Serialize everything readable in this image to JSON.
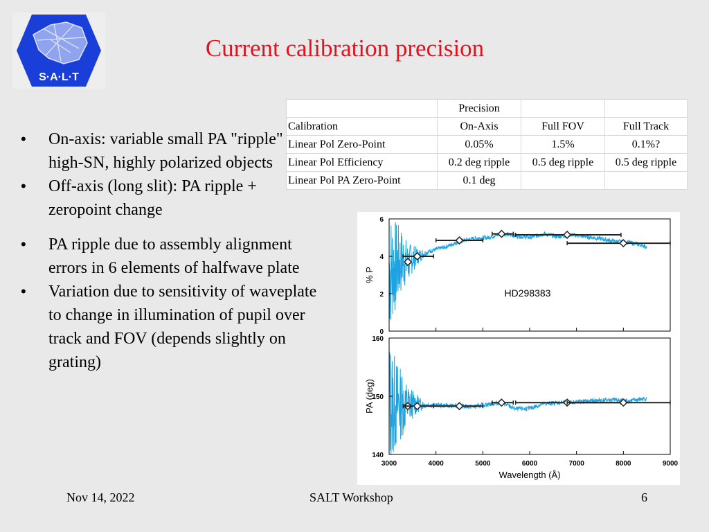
{
  "slide": {
    "title": "Current calibration precision",
    "bullets": [
      "On-axis: variable small PA \"ripple\" for high-SN, highly polarized objects",
      "Off-axis (long slit): PA ripple + zeropoint change",
      "PA ripple due to assembly alignment errors in 6 elements of halfwave plate",
      "Variation due to sensitivity of waveplate to change in illumination of pupil over track and FOV (depends slightly on grating)"
    ],
    "logo": {
      "text": "S·A·L·T",
      "icon": "salt-logo",
      "color": "#1a3fd8"
    }
  },
  "table": {
    "rows": [
      [
        "",
        "Precision",
        "",
        ""
      ],
      [
        "Calibration",
        "On-Axis",
        "Full FOV",
        "Full Track"
      ],
      [
        "Linear Pol Zero-Point",
        "0.05%",
        "1.5%",
        "0.1%?"
      ],
      [
        "Linear Pol Efficiency",
        "0.2 deg ripple",
        "0.5 deg ripple",
        "0.5 deg ripple"
      ],
      [
        "Linear Pol PA Zero-Point",
        "0.1 deg",
        "",
        ""
      ]
    ]
  },
  "footer": {
    "date": "Nov 14, 2022",
    "event": "SALT Workshop",
    "page": "6"
  },
  "chart_data": [
    {
      "type": "line",
      "label": "HD298383",
      "ylabel": "% P",
      "xlim": [
        3000,
        9000
      ],
      "ylim": [
        0,
        6
      ],
      "yticks": [
        0,
        2,
        4,
        6
      ],
      "series_color": "#1fa3e0",
      "series": [
        {
          "x": [
            3000,
            3100,
            3200,
            3300,
            3400,
            3500,
            3700,
            3900,
            4200,
            4500,
            4800,
            5100,
            5400,
            5700,
            6000,
            6300,
            6600,
            6900,
            7200,
            7500,
            7800,
            8100,
            8400,
            8500
          ],
          "values": [
            3.2,
            3.4,
            3.6,
            3.8,
            3.6,
            3.9,
            4.1,
            4.3,
            4.5,
            4.8,
            4.95,
            5.0,
            5.2,
            5.1,
            5.0,
            5.2,
            5.05,
            5.15,
            5.05,
            4.95,
            4.8,
            4.75,
            4.6,
            4.5
          ]
        }
      ],
      "binned": [
        {
          "x": 3400,
          "y": 3.7,
          "xerr": [
            3350,
            3450
          ]
        },
        {
          "x": 3600,
          "y": 4.0,
          "xerr": [
            3300,
            3950
          ]
        },
        {
          "x": 4500,
          "y": 4.85,
          "xerr": [
            4000,
            5000
          ]
        },
        {
          "x": 5400,
          "y": 5.2,
          "xerr": [
            5200,
            5650
          ]
        },
        {
          "x": 6800,
          "y": 5.15,
          "xerr": [
            5700,
            7950
          ]
        },
        {
          "x": 8000,
          "y": 4.7,
          "xerr": [
            6800,
            9000
          ]
        }
      ]
    },
    {
      "type": "line",
      "ylabel": "PA (deg)",
      "xlabel": "Wavelength (Å)",
      "xlim": [
        3000,
        9000
      ],
      "ylim": [
        140,
        160
      ],
      "yticks": [
        140,
        150,
        160
      ],
      "xticks": [
        3000,
        4000,
        5000,
        6000,
        7000,
        8000,
        9000
      ],
      "series_color": "#1fa3e0",
      "series": [
        {
          "x": [
            3000,
            3100,
            3200,
            3300,
            3400,
            3500,
            3700,
            3900,
            4200,
            4500,
            4800,
            5100,
            5400,
            5700,
            6000,
            6300,
            6600,
            6900,
            7200,
            7500,
            7800,
            8100,
            8400,
            8500
          ],
          "values": [
            149,
            148.5,
            148.8,
            148.6,
            148.4,
            148.7,
            148.6,
            148.5,
            148.4,
            148.3,
            148.2,
            148.6,
            148.9,
            147.8,
            147.9,
            148.7,
            148.9,
            149.0,
            149.1,
            149.3,
            149.4,
            149.2,
            149.5,
            149.6
          ]
        }
      ],
      "binned": [
        {
          "x": 3400,
          "y": 148.3,
          "xerr": [
            3350,
            3450
          ]
        },
        {
          "x": 3600,
          "y": 148.3,
          "xerr": [
            3300,
            3950
          ]
        },
        {
          "x": 4500,
          "y": 148.3,
          "xerr": [
            3950,
            5000
          ]
        },
        {
          "x": 5400,
          "y": 148.9,
          "xerr": [
            5200,
            5650
          ]
        },
        {
          "x": 6800,
          "y": 148.9,
          "xerr": [
            5700,
            7950
          ]
        },
        {
          "x": 8000,
          "y": 148.9,
          "xerr": [
            6800,
            9000
          ]
        }
      ]
    }
  ]
}
